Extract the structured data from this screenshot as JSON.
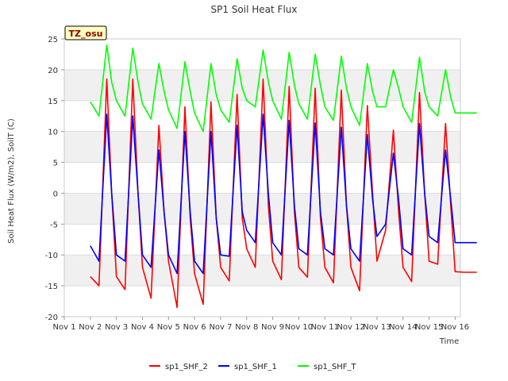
{
  "chart_data": {
    "type": "line",
    "title": "SP1 Soil Heat Flux",
    "xlabel": "Time",
    "ylabel": "Soil Heat Flux (W/m2), SoilT (C)",
    "annotation": "TZ_osu",
    "x_ticks": [
      "Nov 1",
      "Nov 2",
      "Nov 3",
      "Nov 4",
      "Nov 5",
      "Nov 6",
      "Nov 7",
      "Nov 8",
      "Nov 9",
      "Nov 10",
      "Nov 11",
      "Nov 12",
      "Nov 13",
      "Nov 14",
      "Nov 15",
      "Nov 16"
    ],
    "y_ticks": [
      -20,
      -15,
      -10,
      -5,
      0,
      5,
      10,
      15,
      20,
      25
    ],
    "ylim": [
      -20,
      25
    ],
    "xlim": [
      0,
      15.2
    ],
    "x_units": "days since Nov 1",
    "grid": "horizontal alternating bands",
    "legend_position": "bottom",
    "x": [
      1.0,
      1.33,
      1.63,
      1.82,
      2.0,
      2.33,
      2.63,
      2.83,
      3.0,
      3.33,
      3.63,
      3.83,
      4.0,
      4.33,
      4.63,
      4.83,
      5.0,
      5.33,
      5.63,
      5.83,
      6.0,
      6.33,
      6.63,
      6.83,
      7.0,
      7.33,
      7.63,
      7.83,
      8.0,
      8.33,
      8.63,
      8.83,
      9.0,
      9.33,
      9.63,
      9.83,
      10.0,
      10.33,
      10.63,
      10.83,
      11.0,
      11.33,
      11.63,
      11.83,
      12.0,
      12.33,
      12.63,
      12.83,
      13.0,
      13.33,
      13.63,
      13.83,
      14.0,
      14.33,
      14.63,
      14.83,
      15.0,
      15.33,
      15.63,
      15.83
    ],
    "series": [
      {
        "name": "sp1_SHF_2",
        "color": "#ff0000",
        "values": [
          -13.5,
          -15.0,
          18.5,
          0,
          -13.5,
          -15.6,
          18.5,
          0,
          -12.0,
          -17.0,
          11.0,
          -3.0,
          -11.0,
          -18.5,
          14.0,
          -4.0,
          -13.0,
          -18.0,
          14.8,
          -4.0,
          -12.0,
          -14.2,
          16.0,
          -4.0,
          -9.0,
          -12.0,
          18.5,
          -2.0,
          -11.0,
          -14.0,
          17.3,
          -3.0,
          -12.0,
          -13.6,
          17.0,
          -4.0,
          -12.0,
          -14.5,
          16.7,
          -2.0,
          -12.0,
          -15.8,
          14.2,
          0,
          -11.0,
          -6.0,
          10.2,
          -3.0,
          -12.0,
          -14.3,
          16.3,
          0,
          -11.0,
          -11.5,
          11.3,
          -2.0,
          -12.7,
          -12.8,
          -12.8,
          -12.8
        ]
      },
      {
        "name": "sp1_SHF_1",
        "color": "#0000ff",
        "values": [
          -8.5,
          -11.0,
          12.8,
          0,
          -10.0,
          -11.0,
          12.5,
          0,
          -10.0,
          -12.0,
          7.0,
          -3.0,
          -10.0,
          -13.0,
          10.0,
          -3.0,
          -11.0,
          -13.0,
          10.0,
          -4.0,
          -10.0,
          -10.2,
          11.0,
          -3.0,
          -6.0,
          -8.0,
          12.8,
          0,
          -8.0,
          -10.0,
          11.8,
          -2.0,
          -9.0,
          -10.0,
          11.4,
          -3.0,
          -9.0,
          -10.0,
          10.7,
          -2.0,
          -9.0,
          -11.0,
          9.5,
          -1.0,
          -7.0,
          -5.0,
          6.5,
          -1.0,
          -9.0,
          -10.0,
          11.3,
          0,
          -7.0,
          -8.0,
          7.0,
          -1.0,
          -8.0,
          -8.0,
          -8.0,
          -8.0
        ]
      },
      {
        "name": "sp1_SHF_T",
        "color": "#00ff00",
        "values": [
          14.8,
          12.5,
          24.0,
          18.0,
          15.0,
          12.5,
          23.5,
          18.0,
          14.5,
          12.0,
          21.0,
          16.5,
          13.5,
          10.5,
          21.3,
          16.5,
          13.0,
          10.0,
          21.0,
          16.0,
          13.5,
          11.5,
          21.8,
          17.0,
          15.0,
          14.0,
          23.2,
          18.0,
          15.0,
          12.0,
          22.8,
          17.5,
          14.5,
          12.0,
          22.5,
          17.5,
          14.0,
          11.8,
          22.2,
          17.0,
          14.0,
          11.0,
          21.0,
          16.5,
          14.0,
          14.0,
          20.0,
          17.0,
          14.0,
          11.5,
          22.0,
          16.5,
          14.0,
          12.5,
          20.0,
          15.5,
          13.0,
          13.0,
          13.0,
          13.0
        ]
      }
    ]
  }
}
